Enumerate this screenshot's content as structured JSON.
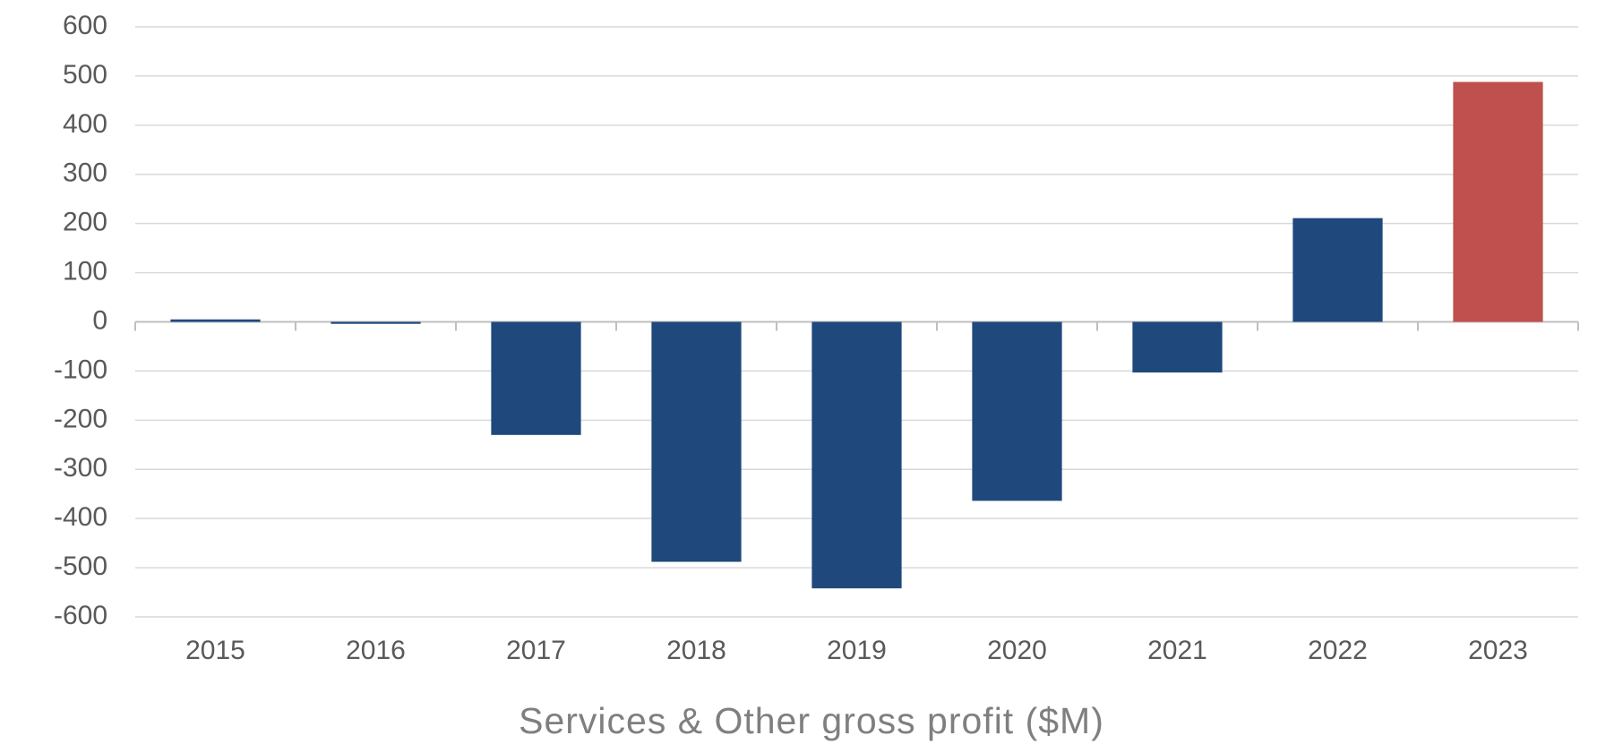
{
  "chart_data": {
    "type": "bar",
    "x_label": "Services & Other gross profit ($M)",
    "categories": [
      "2015",
      "2016",
      "2017",
      "2018",
      "2019",
      "2020",
      "2021",
      "2022",
      "2023"
    ],
    "values": [
      5,
      -4,
      -230,
      -488,
      -542,
      -364,
      -103,
      211,
      488
    ],
    "colors": [
      "#1f497d",
      "#1f497d",
      "#1f497d",
      "#1f497d",
      "#1f497d",
      "#1f497d",
      "#1f497d",
      "#1f497d",
      "#c0504d"
    ],
    "ylim": [
      -600,
      600
    ],
    "yticks": [
      -600,
      -500,
      -400,
      -300,
      -200,
      -100,
      0,
      100,
      200,
      300,
      400,
      500,
      600
    ],
    "grid": true
  }
}
